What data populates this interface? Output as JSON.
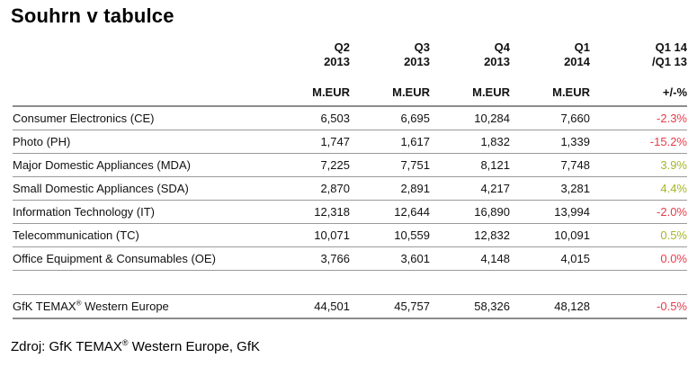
{
  "page": {
    "title": "Souhrn v tabulce",
    "background": "#ffffff"
  },
  "colors": {
    "negative_pct": "#e63c4b",
    "positive_pct": "#a5b628",
    "rule_gray": "#9a9a9a",
    "text": "#000000"
  },
  "table": {
    "columns": [
      {
        "period": "Q2",
        "year": "2013",
        "units": "M.EUR"
      },
      {
        "period": "Q3",
        "year": "2013",
        "units": "M.EUR"
      },
      {
        "period": "Q4",
        "year": "2013",
        "units": "M.EUR"
      },
      {
        "period": "Q1",
        "year": "2014",
        "units": "M.EUR"
      },
      {
        "period": "Q1 14",
        "year": "/Q1 13",
        "units": "+/-%"
      }
    ],
    "rows": [
      {
        "label": "Consumer Electronics (CE)",
        "values": [
          "6,503",
          "6,695",
          "10,284",
          "7,660"
        ],
        "pct": "-2.3%",
        "trend": "down"
      },
      {
        "label": "Photo (PH)",
        "values": [
          "1,747",
          "1,617",
          "1,832",
          "1,339"
        ],
        "pct": "-15.2%",
        "trend": "down"
      },
      {
        "label": "Major Domestic Appliances (MDA)",
        "values": [
          "7,225",
          "7,751",
          "8,121",
          "7,748"
        ],
        "pct": "3.9%",
        "trend": "up"
      },
      {
        "label": "Small Domestic Appliances (SDA)",
        "values": [
          "2,870",
          "2,891",
          "4,217",
          "3,281"
        ],
        "pct": "4.4%",
        "trend": "up"
      },
      {
        "label": "Information Technology (IT)",
        "values": [
          "12,318",
          "12,644",
          "16,890",
          "13,994"
        ],
        "pct": "-2.0%",
        "trend": "down"
      },
      {
        "label": "Telecommunication (TC)",
        "values": [
          "10,071",
          "10,559",
          "12,832",
          "10,091"
        ],
        "pct": "0.5%",
        "trend": "up"
      },
      {
        "label": "Office Equipment & Consumables (OE)",
        "values": [
          "3,766",
          "3,601",
          "4,148",
          "4,015"
        ],
        "pct": "0.0%",
        "trend": "down"
      }
    ],
    "total_row": {
      "label_pre": "GfK TEMAX",
      "label_sup": "®",
      "label_post": " Western Europe",
      "values": [
        "44,501",
        "45,757",
        "58,326",
        "48,128"
      ],
      "pct": "-0.5%",
      "trend": "down"
    }
  },
  "footer": {
    "pre": "Zdroj: GfK TEMAX",
    "sup": "®",
    "post": " Western Europe, GfK"
  }
}
